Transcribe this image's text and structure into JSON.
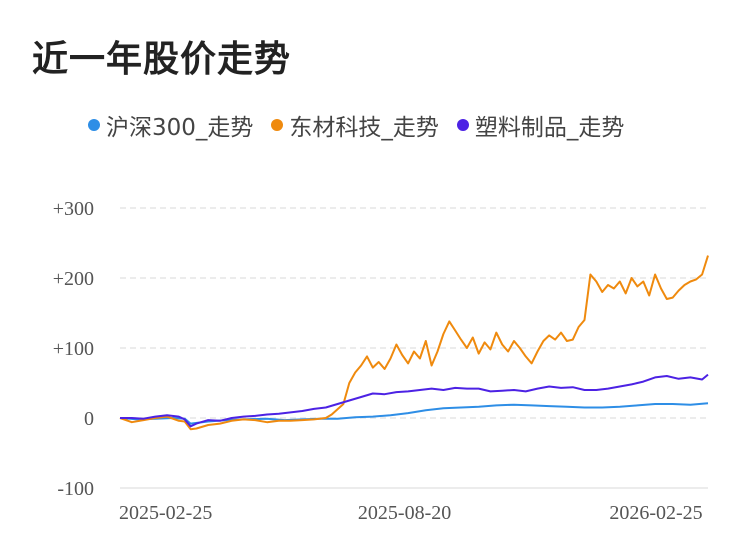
{
  "title": "近一年股价走势",
  "chart_data": {
    "type": "line",
    "grid": true,
    "legend_position": "top",
    "y_ticks": [
      "+300",
      "+200",
      "+100",
      "0",
      "-100"
    ],
    "y_tick_values": [
      300,
      200,
      100,
      0,
      -100
    ],
    "ylim": [
      -100,
      300
    ],
    "x_ticks": [
      "2025-02-25",
      "2025-08-20",
      "2026-02-25"
    ],
    "x_range": [
      "2025-02-25",
      "2026-02-25"
    ],
    "x_tick_positions": [
      0.0,
      0.484,
      1.0
    ],
    "series": [
      {
        "name": "沪深300_走势",
        "color": "#2e8ee6",
        "x": [
          0,
          0.03,
          0.06,
          0.09,
          0.11,
          0.12,
          0.15,
          0.18,
          0.21,
          0.25,
          0.28,
          0.31,
          0.34,
          0.37,
          0.4,
          0.43,
          0.46,
          0.49,
          0.52,
          0.55,
          0.58,
          0.61,
          0.64,
          0.67,
          0.7,
          0.73,
          0.76,
          0.79,
          0.82,
          0.85,
          0.88,
          0.91,
          0.94,
          0.97,
          1.0
        ],
        "values": [
          0,
          -2,
          -1,
          0,
          -1,
          -8,
          -5,
          -3,
          -2,
          -1,
          -3,
          -2,
          -1,
          -1,
          1,
          2,
          4,
          7,
          11,
          14,
          15,
          16,
          18,
          19,
          18,
          17,
          16,
          15,
          15,
          16,
          18,
          20,
          20,
          19,
          21
        ]
      },
      {
        "name": "东材科技_走势",
        "color": "#ef8a0e",
        "x": [
          0,
          0.02,
          0.04,
          0.06,
          0.08,
          0.1,
          0.11,
          0.12,
          0.13,
          0.15,
          0.17,
          0.19,
          0.21,
          0.23,
          0.25,
          0.27,
          0.29,
          0.31,
          0.33,
          0.35,
          0.36,
          0.38,
          0.39,
          0.4,
          0.41,
          0.42,
          0.43,
          0.44,
          0.45,
          0.46,
          0.47,
          0.48,
          0.49,
          0.5,
          0.51,
          0.52,
          0.53,
          0.54,
          0.55,
          0.56,
          0.57,
          0.58,
          0.59,
          0.6,
          0.61,
          0.62,
          0.63,
          0.64,
          0.65,
          0.66,
          0.67,
          0.68,
          0.69,
          0.7,
          0.71,
          0.72,
          0.73,
          0.74,
          0.75,
          0.76,
          0.77,
          0.78,
          0.79,
          0.8,
          0.81,
          0.82,
          0.83,
          0.84,
          0.85,
          0.86,
          0.87,
          0.88,
          0.89,
          0.9,
          0.91,
          0.92,
          0.93,
          0.94,
          0.95,
          0.96,
          0.97,
          0.98,
          0.99,
          1.0
        ],
        "values": [
          0,
          -6,
          -3,
          0,
          2,
          -4,
          -5,
          -16,
          -15,
          -10,
          -8,
          -4,
          -2,
          -3,
          -6,
          -4,
          -4,
          -3,
          -2,
          0,
          5,
          20,
          50,
          65,
          75,
          88,
          72,
          80,
          70,
          85,
          105,
          90,
          78,
          95,
          85,
          110,
          75,
          95,
          120,
          138,
          125,
          112,
          100,
          115,
          92,
          108,
          98,
          122,
          105,
          95,
          110,
          100,
          88,
          78,
          95,
          110,
          118,
          112,
          122,
          110,
          112,
          130,
          140,
          205,
          195,
          180,
          190,
          185,
          195,
          178,
          200,
          188,
          195,
          175,
          205,
          185,
          170,
          172,
          182,
          190,
          195,
          198,
          205,
          232
        ]
      },
      {
        "name": "塑料制品_走势",
        "color": "#4c22e4",
        "x": [
          0,
          0.02,
          0.04,
          0.06,
          0.08,
          0.1,
          0.11,
          0.12,
          0.13,
          0.15,
          0.17,
          0.19,
          0.21,
          0.23,
          0.25,
          0.27,
          0.29,
          0.31,
          0.33,
          0.35,
          0.37,
          0.39,
          0.41,
          0.43,
          0.45,
          0.47,
          0.49,
          0.51,
          0.53,
          0.55,
          0.57,
          0.59,
          0.61,
          0.63,
          0.65,
          0.67,
          0.69,
          0.71,
          0.73,
          0.75,
          0.77,
          0.79,
          0.81,
          0.83,
          0.85,
          0.87,
          0.89,
          0.91,
          0.93,
          0.95,
          0.97,
          0.99,
          1.0
        ],
        "values": [
          0,
          0,
          -1,
          2,
          4,
          2,
          -2,
          -12,
          -8,
          -3,
          -4,
          0,
          2,
          3,
          5,
          6,
          8,
          10,
          13,
          15,
          20,
          25,
          30,
          35,
          34,
          37,
          38,
          40,
          42,
          40,
          43,
          42,
          42,
          38,
          39,
          40,
          38,
          42,
          45,
          43,
          44,
          40,
          40,
          42,
          45,
          48,
          52,
          58,
          60,
          56,
          58,
          55,
          62
        ]
      }
    ]
  }
}
